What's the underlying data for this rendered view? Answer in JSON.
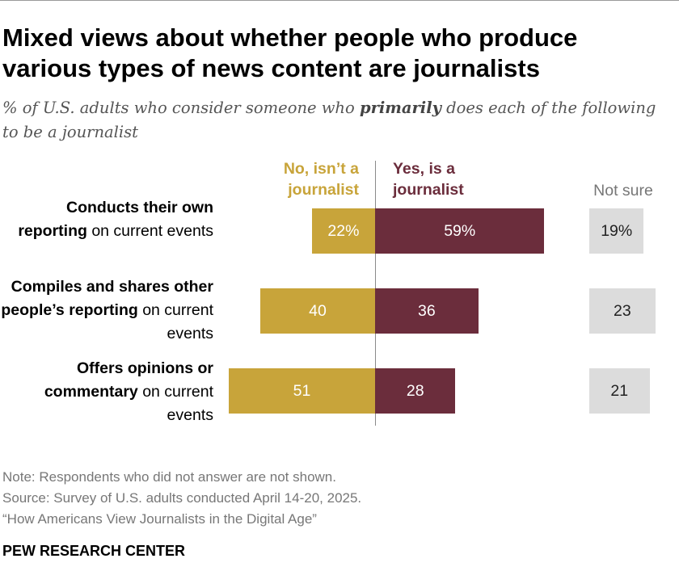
{
  "title": "Mixed views about whether people who produce various types of news content are journalists",
  "subtitle_pre": "% of U.S. adults who consider someone who ",
  "subtitle_emph": "primarily",
  "subtitle_post": " does each of the following to be a journalist",
  "chart_data": {
    "type": "bar",
    "orientation": "horizontal-diverging",
    "legend": {
      "no": "No, isn’t a journalist",
      "yes": "Yes, is a journalist",
      "not_sure": "Not sure"
    },
    "categories": [
      {
        "bold": "Conducts their own reporting",
        "rest": " on current events"
      },
      {
        "bold": "Compiles and shares other people’s reporting",
        "rest": " on current events"
      },
      {
        "bold": "Offers opinions or commentary",
        "rest": " on current events"
      }
    ],
    "series": [
      {
        "name": "No, isn’t a journalist",
        "values": [
          22,
          40,
          51
        ],
        "labels": [
          "22%",
          "40",
          "51"
        ],
        "color": "#c8a43a"
      },
      {
        "name": "Yes, is a journalist",
        "values": [
          59,
          36,
          28
        ],
        "labels": [
          "59%",
          "36",
          "28"
        ],
        "color": "#6b2d3c"
      },
      {
        "name": "Not sure",
        "values": [
          19,
          23,
          21
        ],
        "labels": [
          "19%",
          "23",
          "21"
        ],
        "color": "#dcdcdc"
      }
    ]
  },
  "notes": {
    "note": "Note: Respondents who did not answer are not shown.",
    "source": "Source: Survey of U.S. adults conducted April 14-20, 2025.",
    "report": "“How Americans View Journalists in the Digital Age”"
  },
  "brand": "PEW RESEARCH CENTER"
}
